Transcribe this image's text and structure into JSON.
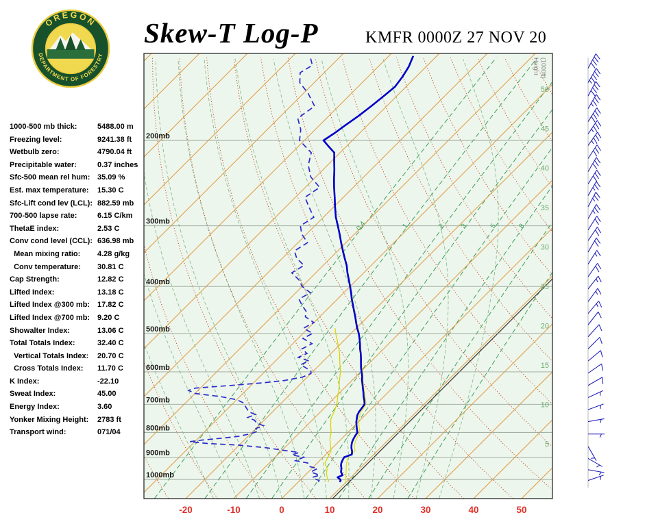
{
  "header": {
    "title": "Skew-T Log-P",
    "station_id": "KMFR 0000Z 27 NOV 20",
    "logo": {
      "arc_top": "OREGON",
      "arc_bottom": "DEPARTMENT OF FORESTRY"
    }
  },
  "indices": [
    {
      "label": "1000-500 mb thick:",
      "value": "5488.00 m"
    },
    {
      "label": "Freezing level:",
      "value": "9241.38 ft"
    },
    {
      "label": "Wetbulb zero:",
      "value": "4790.04 ft"
    },
    {
      "label": "Precipitable water:",
      "value": "0.37 inches"
    },
    {
      "label": "Sfc-500 mean rel hum:",
      "value": "35.09 %"
    },
    {
      "label": "Est. max temperature:",
      "value": "15.30 C"
    },
    {
      "label": "Sfc-Lift cond lev (LCL):",
      "value": "882.59 mb"
    },
    {
      "label": "700-500 lapse rate:",
      "value": "6.15 C/km"
    },
    {
      "label": "ThetaE index:",
      "value": "2.53 C"
    },
    {
      "label": "Conv cond level (CCL):",
      "value": "636.98 mb"
    },
    {
      "label": "  Mean mixing ratio:",
      "value": "4.28 g/kg"
    },
    {
      "label": "  Conv temperature:",
      "value": "30.81 C"
    },
    {
      "label": "Cap Strength:",
      "value": "12.82 C"
    },
    {
      "label": "Lifted Index:",
      "value": "13.18 C"
    },
    {
      "label": "Lifted Index @300 mb:",
      "value": "17.82 C"
    },
    {
      "label": "Lifted Index @700 mb:",
      "value": "9.20 C"
    },
    {
      "label": "Showalter Index:",
      "value": "13.06 C"
    },
    {
      "label": "Total Totals Index:",
      "value": "32.40 C"
    },
    {
      "label": "  Vertical Totals Index:",
      "value": "20.70 C"
    },
    {
      "label": "  Cross Totals Index:",
      "value": "11.70 C"
    },
    {
      "label": "K Index:",
      "value": "-22.10"
    },
    {
      "label": "Sweat Index:",
      "value": "45.00"
    },
    {
      "label": "Energy Index:",
      "value": "3.60"
    },
    {
      "label": "Yonker Mixing Height:",
      "value": "2783 ft"
    },
    {
      "label": "Transport wind:",
      "value": "071/04"
    }
  ],
  "chart_data": {
    "type": "skewt",
    "title": "Skew-T Log-P",
    "station": "KMFR 0000Z 27 NOV 20",
    "pressure_labels": [
      "200mb",
      "300mb",
      "400mb",
      "500mb",
      "600mb",
      "700mb",
      "800mb",
      "900mb",
      "1000mb"
    ],
    "temp_axis_c": [
      -20,
      -10,
      0,
      10,
      20,
      30,
      40,
      50
    ],
    "height_axis_kft": [
      5,
      10,
      15,
      20,
      25,
      30,
      35,
      40,
      45,
      50
    ],
    "height_axis_label_1": "Height",
    "height_axis_label_2": "(1000ft)",
    "mixing_ratio_labeled_gkg": [
      "0.4",
      "1",
      "2",
      "3",
      "5",
      "8"
    ],
    "mixing_ratio_extra_gkg": [
      12,
      20
    ],
    "isotherm_range_c": {
      "min": -120,
      "max": 60,
      "step": 10
    },
    "dry_adiabats_theta_c": {
      "min": -30,
      "max": 150,
      "step": 10
    },
    "moist_adiabats_thetaw_c": [
      -20,
      -15,
      -10,
      -5,
      0,
      5,
      10,
      15,
      20,
      25,
      30
    ],
    "reference_line_c": 10.6,
    "temperature_profile_p_t": [
      [
        1012,
        8.6
      ],
      [
        1005,
        8.5
      ],
      [
        1000,
        8.2
      ],
      [
        990,
        7.2
      ],
      [
        980,
        7.8
      ],
      [
        965,
        6.8
      ],
      [
        950,
        6.2
      ],
      [
        935,
        5.4
      ],
      [
        925,
        5.0
      ],
      [
        910,
        4.6
      ],
      [
        900,
        4.4
      ],
      [
        888,
        5.4
      ],
      [
        875,
        4.8
      ],
      [
        862,
        4.0
      ],
      [
        850,
        3.4
      ],
      [
        838,
        2.9
      ],
      [
        825,
        2.5
      ],
      [
        812,
        2.2
      ],
      [
        800,
        2.0
      ],
      [
        788,
        1.2
      ],
      [
        775,
        0.4
      ],
      [
        762,
        -0.4
      ],
      [
        750,
        -1.0
      ],
      [
        738,
        -1.6
      ],
      [
        725,
        -2.0
      ],
      [
        712,
        -2.2
      ],
      [
        700,
        -2.4
      ],
      [
        688,
        -3.2
      ],
      [
        675,
        -4.2
      ],
      [
        662,
        -5.1
      ],
      [
        650,
        -6.0
      ],
      [
        638,
        -6.9
      ],
      [
        625,
        -7.9
      ],
      [
        612,
        -8.8
      ],
      [
        600,
        -9.8
      ],
      [
        588,
        -10.8
      ],
      [
        575,
        -11.8
      ],
      [
        562,
        -12.8
      ],
      [
        550,
        -13.8
      ],
      [
        538,
        -14.9
      ],
      [
        525,
        -16.0
      ],
      [
        512,
        -17.2
      ],
      [
        500,
        -18.4
      ],
      [
        488,
        -19.8
      ],
      [
        475,
        -21.2
      ],
      [
        462,
        -22.6
      ],
      [
        450,
        -24.0
      ],
      [
        438,
        -25.4
      ],
      [
        425,
        -27.0
      ],
      [
        412,
        -28.5
      ],
      [
        400,
        -30.0
      ],
      [
        388,
        -31.6
      ],
      [
        375,
        -33.4
      ],
      [
        362,
        -35.1
      ],
      [
        350,
        -37.0
      ],
      [
        338,
        -38.9
      ],
      [
        325,
        -41.0
      ],
      [
        312,
        -43.1
      ],
      [
        300,
        -45.2
      ],
      [
        288,
        -47.4
      ],
      [
        275,
        -49.6
      ],
      [
        262,
        -51.8
      ],
      [
        250,
        -54.0
      ],
      [
        240,
        -55.8
      ],
      [
        230,
        -57.6
      ],
      [
        220,
        -59.6
      ],
      [
        212,
        -61.2
      ],
      [
        205,
        -64.0
      ],
      [
        200,
        -66.0
      ],
      [
        193,
        -65.2
      ],
      [
        186,
        -64.6
      ],
      [
        178,
        -63.8
      ],
      [
        170,
        -63.2
      ],
      [
        162,
        -62.7
      ],
      [
        155,
        -62.3
      ],
      [
        148,
        -62.8
      ],
      [
        141,
        -63.6
      ],
      [
        134,
        -64.9
      ]
    ],
    "dewpoint_profile_p_td": [
      [
        1012,
        4.2
      ],
      [
        1005,
        4.0
      ],
      [
        1000,
        3.2
      ],
      [
        990,
        2.0
      ],
      [
        980,
        3.0
      ],
      [
        965,
        0.5
      ],
      [
        950,
        1.2
      ],
      [
        940,
        -1.0
      ],
      [
        925,
        -2.0
      ],
      [
        915,
        -5.0
      ],
      [
        900,
        -4.0
      ],
      [
        890,
        -7.0
      ],
      [
        880,
        -6.0
      ],
      [
        870,
        -10.0
      ],
      [
        860,
        -14.0
      ],
      [
        850,
        -20.0
      ],
      [
        843,
        -27.0
      ],
      [
        836,
        -31.0
      ],
      [
        830,
        -29.0
      ],
      [
        822,
        -25.0
      ],
      [
        815,
        -22.0
      ],
      [
        805,
        -20.0
      ],
      [
        795,
        -19.0
      ],
      [
        785,
        -20.0
      ],
      [
        775,
        -19.0
      ],
      [
        765,
        -21.0
      ],
      [
        755,
        -22.0
      ],
      [
        745,
        -24.0
      ],
      [
        735,
        -23.0
      ],
      [
        725,
        -25.0
      ],
      [
        715,
        -26.0
      ],
      [
        705,
        -27.0
      ],
      [
        695,
        -28.0
      ],
      [
        685,
        -30.0
      ],
      [
        675,
        -34.0
      ],
      [
        665,
        -40.0
      ],
      [
        655,
        -42.0
      ],
      [
        648,
        -41.0
      ],
      [
        640,
        -34.0
      ],
      [
        632,
        -28.0
      ],
      [
        625,
        -24.0
      ],
      [
        615,
        -21.0
      ],
      [
        605,
        -20.0
      ],
      [
        598,
        -20.5
      ],
      [
        590,
        -22.0
      ],
      [
        580,
        -24.0
      ],
      [
        570,
        -23.0
      ],
      [
        560,
        -26.0
      ],
      [
        550,
        -25.0
      ],
      [
        538,
        -27.0
      ],
      [
        525,
        -26.0
      ],
      [
        512,
        -29.0
      ],
      [
        500,
        -28.0
      ],
      [
        488,
        -31.0
      ],
      [
        475,
        -30.0
      ],
      [
        462,
        -33.0
      ],
      [
        450,
        -34.0
      ],
      [
        438,
        -36.0
      ],
      [
        425,
        -38.0
      ],
      [
        412,
        -37.0
      ],
      [
        400,
        -40.0
      ],
      [
        388,
        -42.0
      ],
      [
        375,
        -45.0
      ],
      [
        362,
        -44.0
      ],
      [
        350,
        -47.0
      ],
      [
        338,
        -49.0
      ],
      [
        325,
        -48.0
      ],
      [
        312,
        -51.0
      ],
      [
        300,
        -53.0
      ],
      [
        288,
        -52.0
      ],
      [
        275,
        -55.0
      ],
      [
        262,
        -58.0
      ],
      [
        250,
        -57.0
      ],
      [
        238,
        -61.0
      ],
      [
        225,
        -64.0
      ],
      [
        212,
        -66.0
      ],
      [
        200,
        -71.0
      ],
      [
        190,
        -73.0
      ],
      [
        180,
        -76.0
      ],
      [
        170,
        -75.0
      ],
      [
        160,
        -79.0
      ],
      [
        152,
        -83.0
      ],
      [
        145,
        -85.0
      ],
      [
        140,
        -84.0
      ],
      [
        135,
        -86.0
      ]
    ],
    "wetbulb_profile_p_tw": [
      [
        1012,
        6.2
      ],
      [
        1005,
        6.0
      ],
      [
        1000,
        5.6
      ],
      [
        975,
        4.2
      ],
      [
        950,
        3.2
      ],
      [
        925,
        1.6
      ],
      [
        900,
        1.0
      ],
      [
        875,
        0.4
      ],
      [
        850,
        -1.0
      ],
      [
        825,
        -2.4
      ],
      [
        800,
        -3.5
      ],
      [
        775,
        -5.0
      ],
      [
        750,
        -6.4
      ],
      [
        725,
        -7.2
      ],
      [
        700,
        -8.2
      ],
      [
        675,
        -9.6
      ],
      [
        650,
        -11.0
      ],
      [
        625,
        -12.6
      ],
      [
        600,
        -14.2
      ],
      [
        575,
        -16.2
      ],
      [
        550,
        -18.2
      ],
      [
        525,
        -20.6
      ],
      [
        500,
        -23.2
      ],
      [
        488,
        -24.4
      ]
    ],
    "virtual_temp_profile_p_tv": [
      [
        1012,
        9.8
      ],
      [
        1005,
        9.5
      ],
      [
        975,
        8.3
      ],
      [
        950,
        7.2
      ],
      [
        925,
        6.1
      ],
      [
        900,
        5.2
      ],
      [
        875,
        5.4
      ],
      [
        850,
        4.0
      ],
      [
        825,
        3.1
      ],
      [
        800,
        2.5
      ],
      [
        775,
        0.9
      ],
      [
        750,
        -0.6
      ],
      [
        725,
        -1.6
      ],
      [
        700,
        -2.1
      ],
      [
        675,
        -3.9
      ],
      [
        650,
        -5.8
      ],
      [
        625,
        -7.7
      ],
      [
        600,
        -9.6
      ],
      [
        575,
        -11.7
      ],
      [
        550,
        -13.7
      ],
      [
        525,
        -15.9
      ],
      [
        500,
        -18.3
      ],
      [
        475,
        -21.1
      ],
      [
        450,
        -23.9
      ],
      [
        425,
        -26.9
      ],
      [
        400,
        -29.9
      ],
      [
        375,
        -33.3
      ],
      [
        350,
        -36.9
      ],
      [
        325,
        -40.9
      ],
      [
        300,
        -45.1
      ]
    ],
    "wind_barbs_p_dir_spd": [
      [
        134,
        30,
        45
      ],
      [
        142,
        28,
        40
      ],
      [
        152,
        30,
        45
      ],
      [
        162,
        28,
        40
      ],
      [
        172,
        30,
        35
      ],
      [
        183,
        32,
        40
      ],
      [
        194,
        34,
        35
      ],
      [
        205,
        35,
        35
      ],
      [
        218,
        33,
        30
      ],
      [
        232,
        30,
        30
      ],
      [
        246,
        32,
        30
      ],
      [
        260,
        30,
        25
      ],
      [
        274,
        28,
        25
      ],
      [
        290,
        30,
        25
      ],
      [
        306,
        32,
        20
      ],
      [
        322,
        34,
        20
      ],
      [
        340,
        30,
        20
      ],
      [
        360,
        32,
        15
      ],
      [
        382,
        35,
        20
      ],
      [
        405,
        38,
        15
      ],
      [
        430,
        36,
        15
      ],
      [
        455,
        40,
        15
      ],
      [
        480,
        38,
        10
      ],
      [
        508,
        42,
        10
      ],
      [
        538,
        45,
        10
      ],
      [
        570,
        50,
        10
      ],
      [
        604,
        55,
        10
      ],
      [
        640,
        60,
        10
      ],
      [
        678,
        65,
        5
      ],
      [
        718,
        70,
        5
      ],
      [
        760,
        80,
        5
      ],
      [
        806,
        90,
        5
      ],
      [
        855,
        150,
        5
      ],
      [
        905,
        120,
        3
      ],
      [
        955,
        100,
        4
      ],
      [
        1005,
        71,
        4
      ]
    ],
    "axes": {
      "pressure_log_top_mb": 132,
      "pressure_log_bottom_mb": 1096,
      "temp_at_bottom_left_c": -28.7,
      "temp_at_bottom_right_c": 56.4,
      "skew_deg": 45,
      "grid": true,
      "legend": false
    },
    "colors": {
      "background": "#edf6ec",
      "isotherm": "#e09a40",
      "dry_adiabat": "#c8502d",
      "moist_adiabat": "#8abc90",
      "mixing_ratio": "#3da05c",
      "pressure_line": "#9aa79a",
      "border": "#1a1a1a",
      "reference_line": "#303030",
      "temp_trace": "#0000c8",
      "dewpoint_trace": "#2a2acc",
      "wetbulb_trace": "#ddd400",
      "virtual_trace": "#e6de2a",
      "barbs": "#2424bb",
      "barb_axis": "#b8b8b8",
      "temp_axis_labels": "#e03028",
      "pressure_axis_labels": "#1a1a1a",
      "height_labels": "#6fae74",
      "height_title": "#8a8a8a"
    }
  }
}
